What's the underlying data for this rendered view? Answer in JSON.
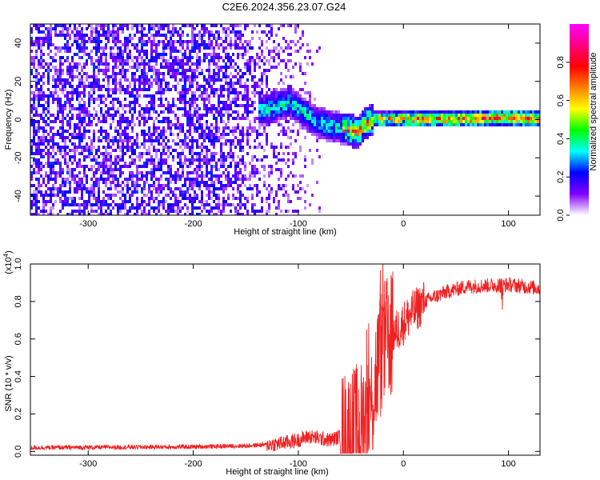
{
  "title": "C2E6.2024.356.23.07.G24",
  "chart_data": [
    {
      "type": "heatmap",
      "xlabel": "Height of straight line (km)",
      "ylabel": "Frequency (Hz)",
      "xlim": [
        -355,
        130
      ],
      "ylim": [
        -50,
        50
      ],
      "xticks": [
        -300,
        -200,
        -100,
        0,
        100
      ],
      "yticks": [
        -40,
        -20,
        0,
        20,
        40
      ],
      "colorbar": {
        "label": "Normalized spectral amplitude",
        "range": [
          0,
          1
        ],
        "ticks": [
          0.0,
          0.2,
          0.4,
          0.6,
          0.8
        ],
        "colors": [
          "#ffffff",
          "#8000ff",
          "#0000ff",
          "#00ffff",
          "#00ff00",
          "#ffff00",
          "#ff8000",
          "#ff0000",
          "#ff0080",
          "#ff00ff"
        ]
      },
      "grid": false,
      "ridge": [
        {
          "x": -130,
          "y": 6
        },
        {
          "x": -110,
          "y": 10
        },
        {
          "x": -95,
          "y": 4
        },
        {
          "x": -85,
          "y": 0
        },
        {
          "x": -70,
          "y": -3
        },
        {
          "x": -55,
          "y": -4
        },
        {
          "x": -45,
          "y": -6
        },
        {
          "x": -38,
          "y": -2
        },
        {
          "x": -30,
          "y": 1
        },
        {
          "x": -15,
          "y": 1
        },
        {
          "x": 0,
          "y": 1
        },
        {
          "x": 30,
          "y": 1
        },
        {
          "x": 60,
          "y": 1
        },
        {
          "x": 90,
          "y": 2
        },
        {
          "x": 130,
          "y": 1
        }
      ]
    },
    {
      "type": "line",
      "xlabel": "Height of straight line (km)",
      "ylabel": "SNR (10 * v/v)",
      "yscale_label": "(x10",
      "yscale_exp": "4",
      "xlim": [
        -355,
        130
      ],
      "ylim": [
        -0.02,
        1.0
      ],
      "xticks": [
        -300,
        -200,
        -100,
        0,
        100
      ],
      "yticks": [
        0.0,
        0.2,
        0.4,
        0.6,
        0.8,
        1.0
      ],
      "grid": false,
      "series": [
        {
          "color": "#ee2222",
          "envelope": [
            {
              "x": -355,
              "y": 0.02
            },
            {
              "x": -200,
              "y": 0.025
            },
            {
              "x": -150,
              "y": 0.03
            },
            {
              "x": -120,
              "y": 0.04
            },
            {
              "x": -100,
              "y": 0.06
            },
            {
              "x": -90,
              "y": 0.08
            },
            {
              "x": -70,
              "y": 0.06
            },
            {
              "x": -50,
              "y": 0.1
            },
            {
              "x": -40,
              "y": 0.14
            },
            {
              "x": -30,
              "y": 0.25
            },
            {
              "x": -25,
              "y": 0.45
            },
            {
              "x": -20,
              "y": 0.55
            },
            {
              "x": -15,
              "y": 0.6
            },
            {
              "x": -5,
              "y": 0.65
            },
            {
              "x": 5,
              "y": 0.72
            },
            {
              "x": 20,
              "y": 0.8
            },
            {
              "x": 40,
              "y": 0.85
            },
            {
              "x": 60,
              "y": 0.88
            },
            {
              "x": 100,
              "y": 0.89
            },
            {
              "x": 130,
              "y": 0.87
            }
          ]
        }
      ]
    }
  ]
}
